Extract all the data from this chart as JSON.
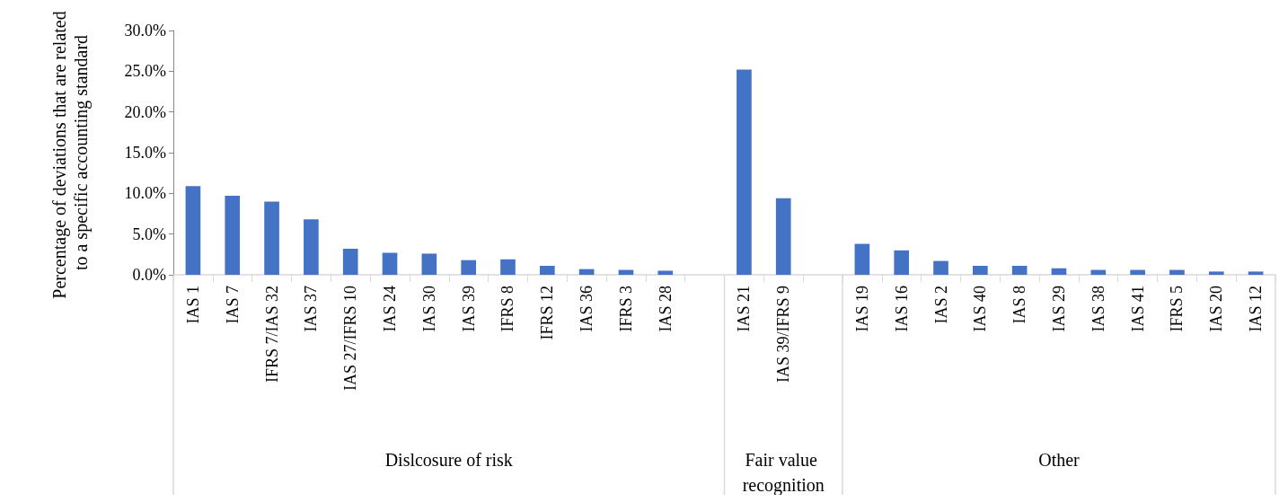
{
  "chart_data": {
    "type": "bar",
    "ylabel": "Percentage of deviations that are related to a specific accounting standard",
    "categories": [
      "IAS 1",
      "IAS 7",
      "IFRS 7/IAS 32",
      "IAS 37",
      "IAS 27/IFRS 10",
      "IAS 24",
      "IAS 30",
      "IAS 39",
      "IFRS 8",
      "IFRS 12",
      "IAS 36",
      "IFRS 3",
      "IAS 28",
      null,
      "IAS 21",
      "IAS 39/IFRS 9",
      null,
      "IAS 19",
      "IAS 16",
      "IAS 2",
      "IAS 40",
      "IAS 8",
      "IAS 29",
      "IAS 38",
      "IAS 41",
      "IFRS 5",
      "IAS 20",
      "IAS 12"
    ],
    "values": [
      10.9,
      9.7,
      9.0,
      6.8,
      3.2,
      2.7,
      2.6,
      1.8,
      1.9,
      1.1,
      0.7,
      0.6,
      0.5,
      null,
      25.2,
      9.4,
      null,
      3.8,
      3.0,
      1.7,
      1.1,
      1.1,
      0.8,
      0.6,
      0.6,
      0.6,
      0.4,
      0.4
    ],
    "color": "#4472c4",
    "ylim": [
      0,
      30
    ],
    "yticks": [
      {
        "value": 0,
        "label": "0.0%"
      },
      {
        "value": 5,
        "label": "5.0%"
      },
      {
        "value": 10,
        "label": "10.0%"
      },
      {
        "value": 15,
        "label": "15.0%"
      },
      {
        "value": 20,
        "label": "20.0%"
      },
      {
        "value": 25,
        "label": "25.0%"
      },
      {
        "value": 30,
        "label": "30.0%"
      }
    ],
    "grid": false,
    "annotations": [
      "Dislcosure of risk",
      "Fair value recognition",
      "Other"
    ]
  }
}
